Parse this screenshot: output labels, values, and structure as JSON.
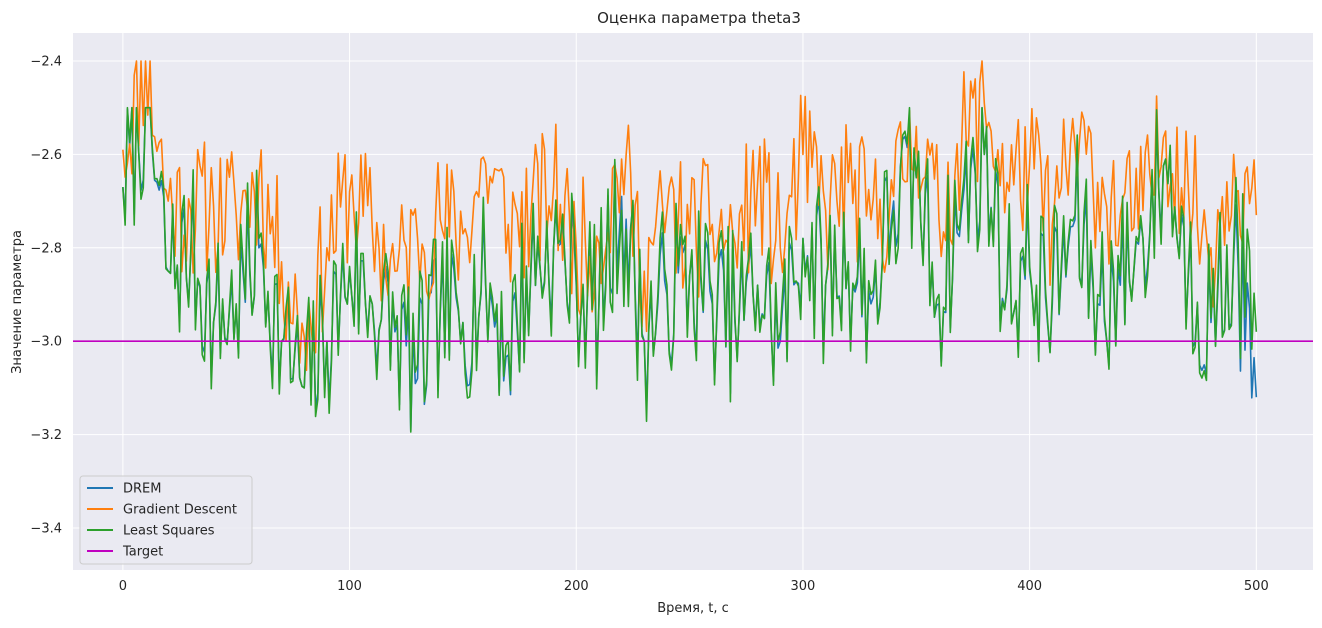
{
  "chart_data": {
    "type": "line",
    "title": "Оценка параметра theta3",
    "xlabel": "Время, t, c",
    "ylabel": "Значение параметра",
    "xlim": [
      -22,
      525
    ],
    "ylim": [
      -3.49,
      -2.34
    ],
    "xticks": [
      0,
      100,
      200,
      300,
      400,
      500
    ],
    "xtick_labels": [
      "0",
      "100",
      "200",
      "300",
      "400",
      "500"
    ],
    "yticks": [
      -3.4,
      -3.2,
      -3.0,
      -2.8,
      -2.6,
      -2.4
    ],
    "ytick_labels": [
      "−3.4",
      "−3.2",
      "−3.0",
      "−2.8",
      "−2.6",
      "−2.4"
    ],
    "grid": true,
    "legend_position": "lower-left",
    "target": -3.0,
    "series": [
      {
        "name": "DREM",
        "color": "#1f77b4"
      },
      {
        "name": "Gradient Descent",
        "color": "#ff7f0e"
      },
      {
        "name": "Least Squares",
        "color": "#2ca02c"
      },
      {
        "name": "Target",
        "color": "#c000c0"
      }
    ],
    "x": [
      0,
      10,
      20,
      30,
      40,
      50,
      60,
      70,
      80,
      90,
      100,
      110,
      120,
      130,
      140,
      150,
      160,
      170,
      180,
      190,
      200,
      210,
      220,
      230,
      240,
      250,
      260,
      270,
      280,
      290,
      300,
      310,
      320,
      330,
      340,
      350,
      360,
      370,
      380,
      390,
      400,
      410,
      420,
      430,
      440,
      450,
      460,
      470,
      480,
      490,
      500
    ],
    "gd": [
      -2.59,
      -2.4,
      -2.7,
      -2.72,
      -2.71,
      -2.73,
      -2.65,
      -2.83,
      -2.99,
      -2.8,
      -2.68,
      -2.76,
      -2.85,
      -2.78,
      -2.74,
      -2.77,
      -2.62,
      -2.75,
      -2.73,
      -2.67,
      -2.8,
      -2.79,
      -2.61,
      -2.85,
      -2.72,
      -2.77,
      -2.75,
      -2.79,
      -2.66,
      -2.8,
      -2.6,
      -2.72,
      -2.66,
      -2.74,
      -2.69,
      -2.54,
      -2.74,
      -2.58,
      -2.49,
      -2.66,
      -2.62,
      -2.75,
      -2.58,
      -2.66,
      -2.73,
      -2.72,
      -2.55,
      -2.67,
      -2.8,
      -2.6,
      -2.73
    ],
    "drem": [
      -2.67,
      -2.5,
      -2.85,
      -2.81,
      -2.96,
      -2.93,
      -2.8,
      -3.0,
      -3.1,
      -3.0,
      -2.85,
      -2.92,
      -2.98,
      -3.08,
      -2.94,
      -2.96,
      -2.88,
      -3.03,
      -2.85,
      -2.8,
      -2.88,
      -2.92,
      -2.69,
      -3.0,
      -2.9,
      -2.86,
      -2.92,
      -2.96,
      -2.88,
      -3.0,
      -2.78,
      -2.88,
      -2.84,
      -2.92,
      -2.7,
      -2.65,
      -2.92,
      -2.72,
      -2.6,
      -2.89,
      -2.85,
      -2.92,
      -2.74,
      -2.92,
      -2.88,
      -2.78,
      -2.61,
      -2.86,
      -2.96,
      -2.82,
      -3.12
    ],
    "ls": [
      -2.67,
      -2.49,
      -2.85,
      -2.8,
      -2.96,
      -2.92,
      -2.78,
      -3.0,
      -3.1,
      -3.0,
      -2.84,
      -2.92,
      -2.97,
      -3.05,
      -2.93,
      -2.96,
      -2.87,
      -3.0,
      -2.84,
      -2.8,
      -2.87,
      -2.92,
      -2.72,
      -3.0,
      -2.88,
      -2.86,
      -2.9,
      -2.95,
      -2.88,
      -2.98,
      -2.78,
      -2.88,
      -2.83,
      -2.9,
      -2.72,
      -2.65,
      -2.9,
      -2.7,
      -2.6,
      -2.88,
      -2.84,
      -2.9,
      -2.73,
      -2.9,
      -2.86,
      -2.78,
      -2.61,
      -2.85,
      -2.95,
      -2.8,
      -2.98
    ]
  }
}
